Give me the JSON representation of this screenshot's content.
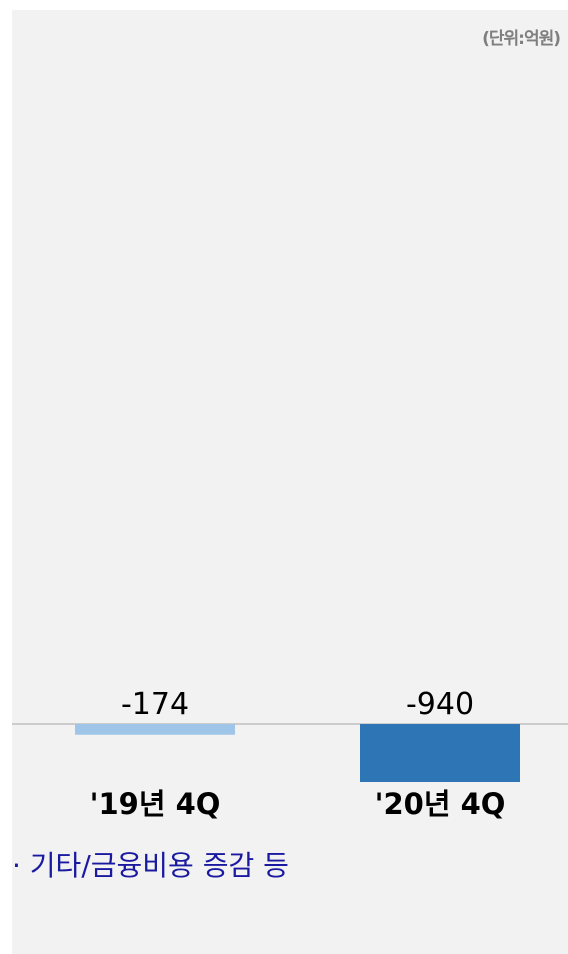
{
  "unit_label": "(단위:억원)",
  "note": "· 기타/금융비용 증감 등",
  "colors": {
    "bar_2019": "#9fc5e8",
    "bar_2020": "#2e75b6",
    "baseline": "#a6a6a6",
    "text": "#000000",
    "note": "#1a1aa0"
  },
  "chart_data": {
    "type": "bar",
    "categories": [
      "'19년 4Q",
      "'20년 4Q"
    ],
    "values": [
      -174,
      -940
    ],
    "data_labels": [
      "-174",
      "-940"
    ],
    "title": "",
    "xlabel": "",
    "ylabel": "",
    "unit": "억원"
  }
}
